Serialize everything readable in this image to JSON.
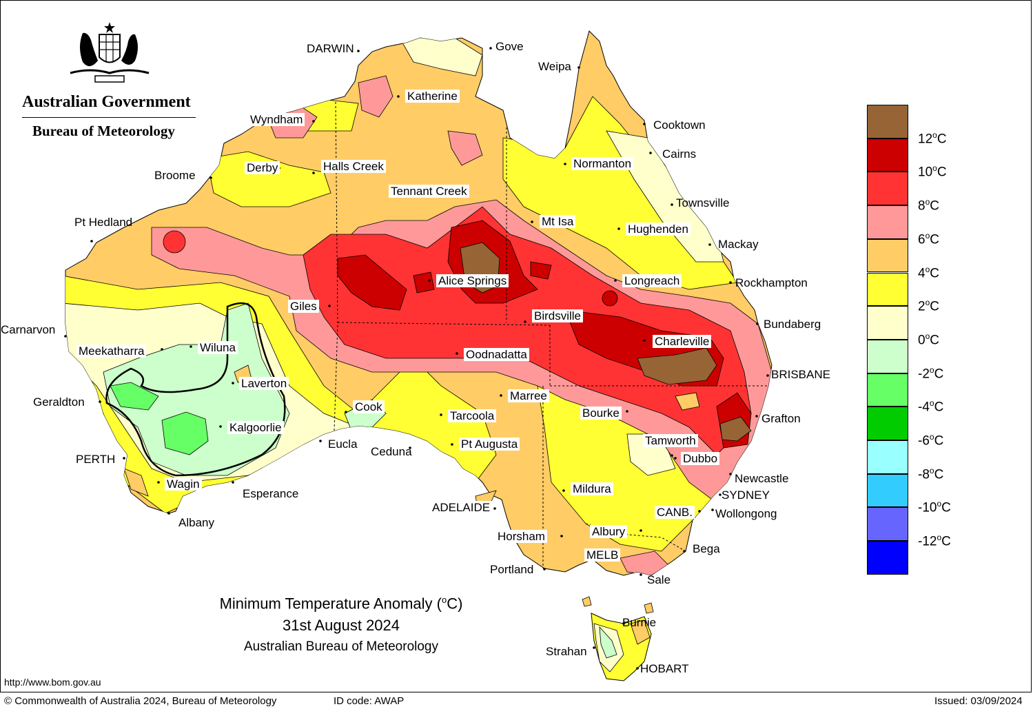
{
  "logo": {
    "government": "Australian Government",
    "bureau": "Bureau of Meteorology",
    "crest_icon": "commonwealth-coat-of-arms-icon"
  },
  "title": {
    "line1": "Minimum Temperature Anomaly (°C)",
    "line2": "31st August 2024",
    "line3": "Australian Bureau of Meteorology"
  },
  "legend": {
    "colors": [
      "#976436",
      "#cc0000",
      "#ff3333",
      "#ff9999",
      "#ffcc66",
      "#ffff33",
      "#ffffcc",
      "#ccffcc",
      "#66ff66",
      "#00cc00",
      "#99ffff",
      "#33ccff",
      "#6666ff",
      "#0000ff"
    ],
    "labels": [
      "12",
      "10",
      "8",
      "6",
      "4",
      "2",
      "0",
      "-2",
      "-4",
      "-6",
      "-8",
      "-10",
      "-12"
    ],
    "unit": "oC"
  },
  "places": {
    "darwin": "DARWIN",
    "gove": "Gove",
    "weipa": "Weipa",
    "katherine": "Katherine",
    "wyndham": "Wyndham",
    "cooktown": "Cooktown",
    "cairns": "Cairns",
    "broome": "Broome",
    "derby": "Derby",
    "halls_creek": "Halls Creek",
    "normanton": "Normanton",
    "tennant_creek": "Tennant Creek",
    "townsville": "Townsville",
    "pt_hedland": "Pt Hedland",
    "mt_isa": "Mt Isa",
    "hughenden": "Hughenden",
    "mackay": "Mackay",
    "alice_springs": "Alice Springs",
    "longreach": "Longreach",
    "rockhampton": "Rockhampton",
    "giles": "Giles",
    "birdsville": "Birdsville",
    "bundaberg": "Bundaberg",
    "carnarvon": "Carnarvon",
    "wiluna": "Wiluna",
    "charleville": "Charleville",
    "meekatharra": "Meekatharra",
    "oodnadatta": "Oodnadatta",
    "brisbane": "BRISBANE",
    "laverton": "Laverton",
    "marree": "Marree",
    "geraldton": "Geraldton",
    "cook": "Cook",
    "tarcoola": "Tarcoola",
    "bourke": "Bourke",
    "grafton": "Grafton",
    "kalgoorlie": "Kalgoorlie",
    "eucla": "Eucla",
    "pt_augusta": "Pt Augusta",
    "tamworth": "Tamworth",
    "ceduna": "Ceduna",
    "perth": "PERTH",
    "dubbo": "Dubbo",
    "newcastle": "Newcastle",
    "wagin": "Wagin",
    "mildura": "Mildura",
    "sydney": "SYDNEY",
    "esperance": "Esperance",
    "adelaide": "ADELAIDE",
    "canberra": "CANB.",
    "wollongong": "Wollongong",
    "albany": "Albany",
    "horsham": "Horsham",
    "albury": "Albury",
    "bega": "Bega",
    "melb": "MELB",
    "portland": "Portland",
    "sale": "Sale",
    "burnie": "Burnie",
    "strahan": "Strahan",
    "hobart": "HOBART"
  },
  "footer": {
    "url": "http://www.bom.gov.au",
    "copyright": "© Commonwealth of Australia 2024, Bureau of Meteorology",
    "id_code": "ID code: AWAP",
    "issued": "Issued: 03/09/2024"
  }
}
